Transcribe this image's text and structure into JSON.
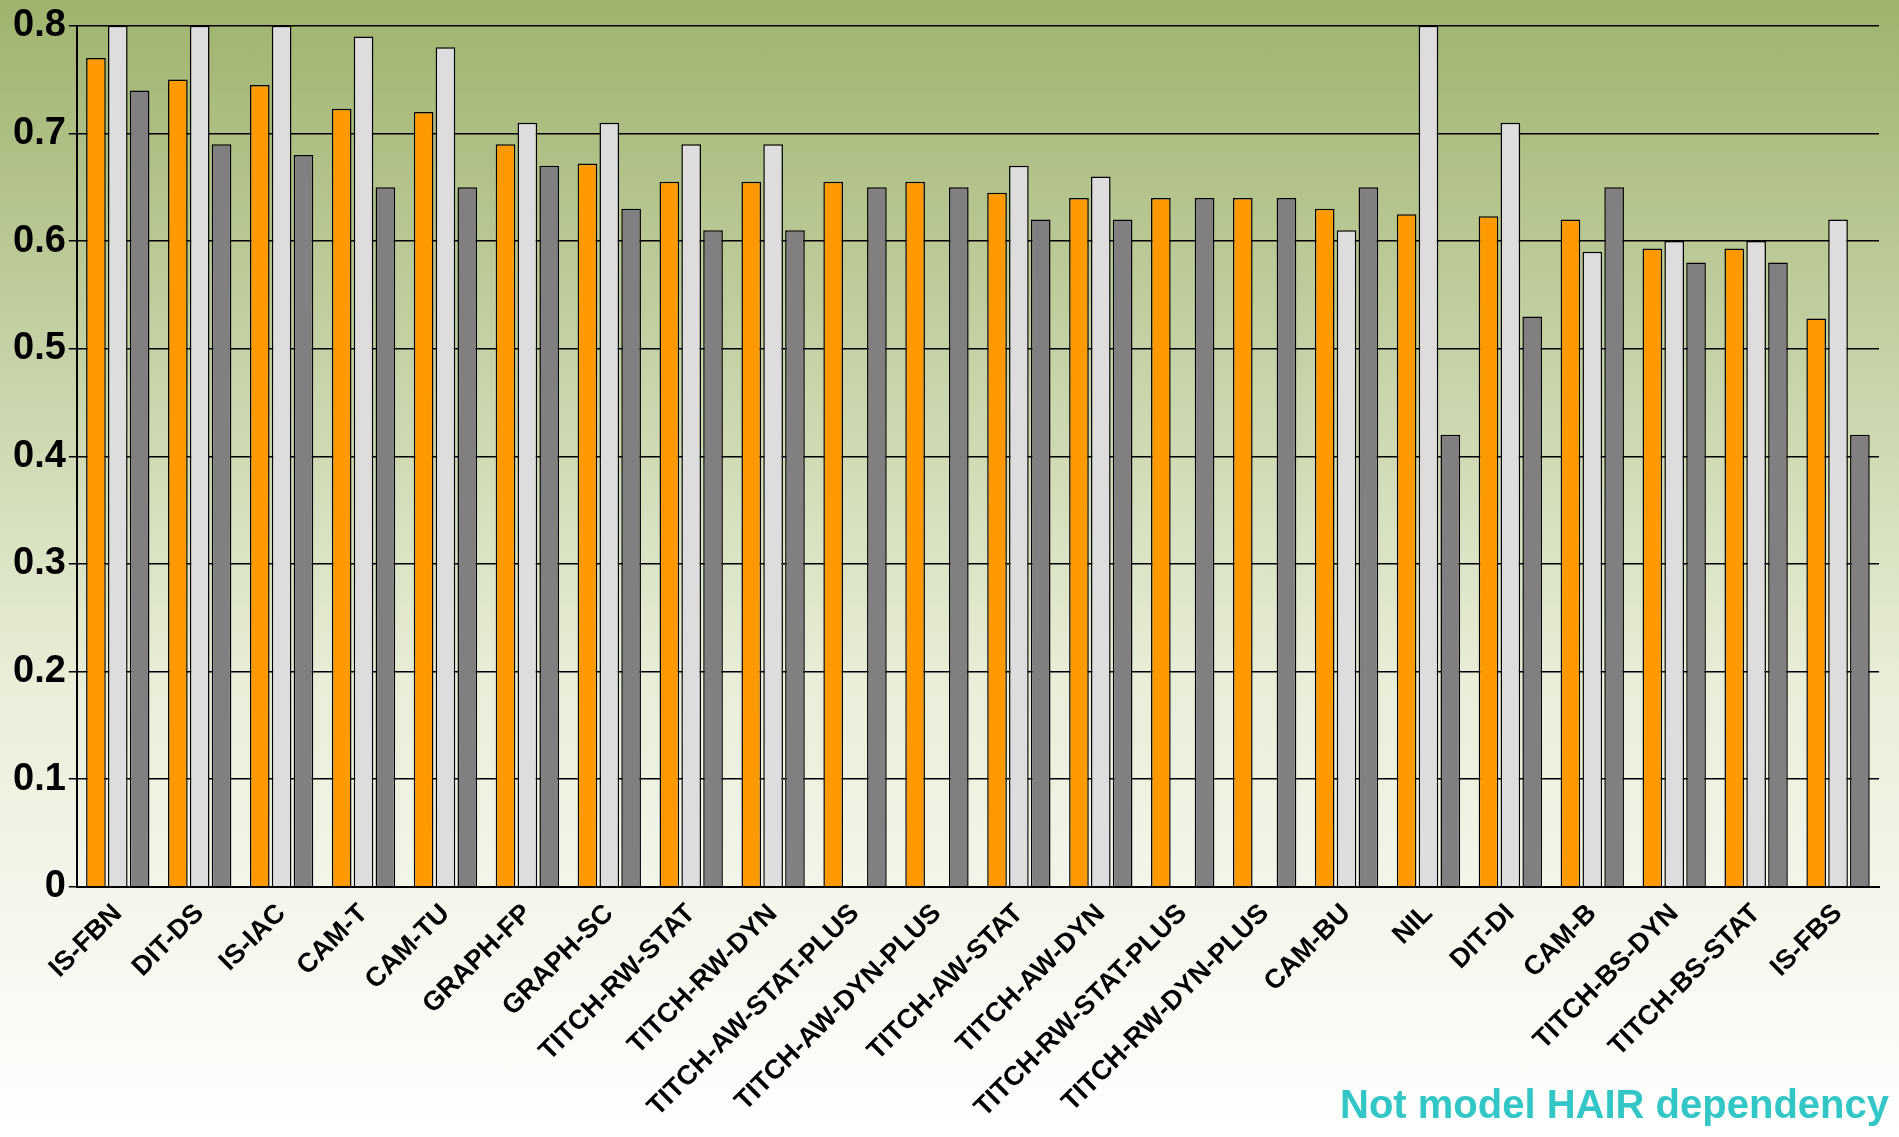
{
  "chart_data": {
    "type": "bar",
    "categories": [
      "IS-FBN",
      "DIT-DS",
      "IS-IAC",
      "CAM-T",
      "CAM-TU",
      "GRAPH-FP",
      "GRAPH-SC",
      "TITCH-RW-STAT",
      "TITCH-RW-DYN",
      "TITCH-AW-STAT-PLUS",
      "TITCH-AW-DYN-PLUS",
      "TITCH-AW-STAT",
      "TITCH-AW-DYN",
      "TITCH-RW-STAT-PLUS",
      "TITCH-RW-DYN-PLUS",
      "CAM-BU",
      "NIL",
      "DIT-DI",
      "CAM-B",
      "TITCH-BS-DYN",
      "TITCH-BS-STAT",
      "IS-FBS"
    ],
    "series": [
      {
        "color": "#ff9900",
        "values": [
          0.77,
          0.75,
          0.745,
          0.723,
          0.72,
          0.69,
          0.672,
          0.655,
          0.655,
          0.655,
          0.655,
          0.645,
          0.64,
          0.64,
          0.64,
          0.63,
          0.625,
          0.623,
          0.62,
          0.593,
          0.593,
          0.528
        ]
      },
      {
        "color": "#dddddd",
        "values": [
          0.8,
          0.8,
          0.8,
          0.79,
          0.78,
          0.71,
          0.71,
          0.69,
          0.69,
          null,
          null,
          0.67,
          0.66,
          null,
          null,
          0.61,
          0.8,
          0.71,
          0.59,
          0.6,
          0.6,
          0.62
        ]
      },
      {
        "color": "#808080",
        "values": [
          0.74,
          0.69,
          0.68,
          0.65,
          0.65,
          0.67,
          0.63,
          0.61,
          0.61,
          0.65,
          0.65,
          0.62,
          0.62,
          0.64,
          0.64,
          0.65,
          0.42,
          0.53,
          0.65,
          0.58,
          0.58,
          0.42
        ]
      }
    ],
    "ylim": [
      0,
      0.8
    ],
    "yticks": [
      0,
      0.1,
      0.2,
      0.3,
      0.4,
      0.5,
      0.6,
      0.7,
      0.8
    ],
    "grid": "y",
    "annotations": [
      "Not model HAIR dependency"
    ]
  }
}
